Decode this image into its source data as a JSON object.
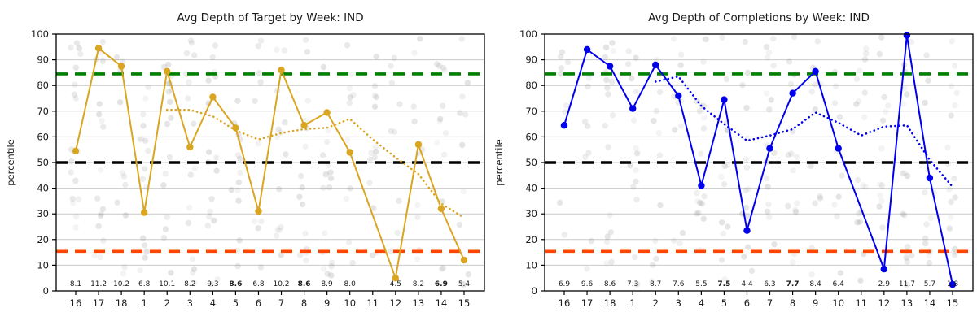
{
  "axis": {
    "ylabel": "percentile",
    "ylim": [
      0,
      100
    ],
    "y_ticks": [
      "0",
      "10",
      "20",
      "30",
      "40",
      "50",
      "60",
      "70",
      "80",
      "90",
      "100"
    ],
    "grid": "horizontal",
    "grid_color": "#c9c9c9",
    "spine_color": "#000000"
  },
  "reference_lines": [
    {
      "id": "upper-band",
      "value": 84.5,
      "color": "#008000"
    },
    {
      "id": "median",
      "value": 50,
      "color": "#000000"
    },
    {
      "id": "lower-band",
      "value": 15.4,
      "color": "#FF4500"
    }
  ],
  "chart_data": [
    {
      "type": "line",
      "title": "Avg Depth of Target by Week: IND",
      "ylabel": "percentile",
      "ylim": [
        0,
        100
      ],
      "categories": [
        "16",
        "17",
        "18",
        "1",
        "2",
        "3",
        "4",
        "5",
        "6",
        "7",
        "8",
        "9",
        "10",
        "11",
        "12",
        "13",
        "14",
        "15"
      ],
      "line_color": "#DAA520",
      "series": [
        {
          "id": "weekly-avg-solid",
          "style": "solid",
          "values": [
            54.5,
            94.5,
            87.5,
            30.5,
            85.5,
            56,
            75.5,
            63.5,
            31,
            86,
            64.5,
            69.5,
            54,
            null,
            5,
            57,
            32,
            12
          ]
        },
        {
          "id": "rolling-trend-dotted",
          "style": "dotted",
          "values": [
            null,
            null,
            null,
            null,
            70.5,
            70.5,
            68,
            62.5,
            59,
            61.5,
            63,
            63.5,
            67,
            59,
            52,
            45.5,
            34,
            28.5
          ]
        }
      ],
      "annotations": {
        "values": [
          "8.1",
          "11.2",
          "10.2",
          "6.8",
          "10.1",
          "8.2",
          "9.3",
          "8.6",
          "6.8",
          "10.2",
          "8.6",
          "8.9",
          "8.0",
          null,
          "4.5",
          "8.2",
          "6.9",
          "5.4"
        ],
        "bold_indices": [
          7,
          10,
          16
        ]
      },
      "background_scatter": {
        "seed": 3,
        "per_week_min": 9,
        "per_week_max": 18,
        "color": "#8a8a8a",
        "min_opacity": 0.08,
        "max_opacity": 0.24,
        "radius": 3.7,
        "x_jitter": 12,
        "y_range": [
          2,
          99
        ]
      }
    },
    {
      "type": "line",
      "title": "Avg Depth of Completions by Week: IND",
      "ylabel": "percentile",
      "ylim": [
        0,
        100
      ],
      "categories": [
        "16",
        "17",
        "18",
        "1",
        "2",
        "3",
        "4",
        "5",
        "6",
        "7",
        "8",
        "9",
        "10",
        "11",
        "12",
        "13",
        "14",
        "15"
      ],
      "line_color": "#0000EE",
      "series": [
        {
          "id": "weekly-avg-solid",
          "style": "solid",
          "values": [
            64.5,
            94,
            87.5,
            71,
            88,
            76,
            41,
            74.5,
            23.5,
            55.5,
            77,
            85.5,
            55.5,
            null,
            8.5,
            99.5,
            44,
            2.5
          ]
        },
        {
          "id": "rolling-trend-dotted",
          "style": "dotted",
          "values": [
            null,
            null,
            null,
            null,
            81.5,
            83.5,
            72,
            65,
            58.5,
            60.5,
            63,
            69.5,
            65.5,
            60.5,
            64,
            64.5,
            51,
            40.5
          ]
        }
      ],
      "annotations": {
        "values": [
          "6.9",
          "9.6",
          "8.6",
          "7.3",
          "8.7",
          "7.6",
          "5.5",
          "7.5",
          "4.4",
          "6.3",
          "7.7",
          "8.4",
          "6.4",
          null,
          "2.9",
          "11.7",
          "5.7",
          "1.8"
        ],
        "bold_indices": [
          7,
          10
        ]
      },
      "background_scatter": {
        "seed": 8,
        "per_week_min": 9,
        "per_week_max": 18,
        "color": "#8a8a8a",
        "min_opacity": 0.08,
        "max_opacity": 0.24,
        "radius": 3.7,
        "x_jitter": 12,
        "y_range": [
          2,
          99
        ]
      }
    }
  ]
}
